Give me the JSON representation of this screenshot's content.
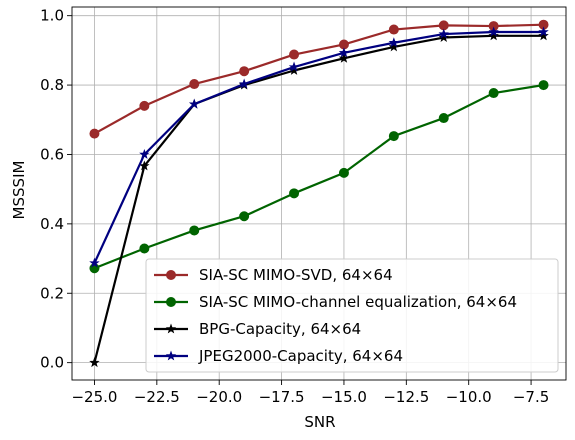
{
  "chart_data": {
    "type": "line",
    "xlabel": "SNR",
    "ylabel": "MSSSIM",
    "xlim": [
      -25.9,
      -6.1
    ],
    "ylim": [
      -0.05,
      1.025
    ],
    "xticks": [
      -25.0,
      -22.5,
      -20.0,
      -17.5,
      -15.0,
      -12.5,
      -10.0,
      -7.5
    ],
    "xtick_labels": [
      "−25.0",
      "−22.5",
      "−20.0",
      "−17.5",
      "−15.0",
      "−12.5",
      "−10.0",
      "−7.5"
    ],
    "yticks": [
      0.0,
      0.2,
      0.4,
      0.6,
      0.8,
      1.0
    ],
    "ytick_labels": [
      "0.0",
      "0.2",
      "0.4",
      "0.6",
      "0.8",
      "1.0"
    ],
    "grid": true,
    "legend_position": "lower-right",
    "x": [
      -25,
      -23,
      -21,
      -19,
      -17,
      -15,
      -13,
      -11,
      -9,
      -7
    ],
    "series": [
      {
        "name": "SIA-SC MIMO-SVD, 64×64",
        "color": "#9b2a2a",
        "marker": "circle",
        "values": [
          0.66,
          0.74,
          0.803,
          0.84,
          0.888,
          0.917,
          0.96,
          0.972,
          0.97,
          0.974
        ]
      },
      {
        "name": "SIA-SC MIMO-channel equalization, 64×64",
        "color": "#006400",
        "marker": "circle",
        "values": [
          0.272,
          0.329,
          0.381,
          0.422,
          0.488,
          0.547,
          0.653,
          0.705,
          0.777,
          0.8
        ]
      },
      {
        "name": "BPG-Capacity, 64×64",
        "color": "#000000",
        "marker": "star",
        "values": [
          0.0,
          0.567,
          0.745,
          0.8,
          0.842,
          0.877,
          0.91,
          0.937,
          0.942,
          0.942
        ]
      },
      {
        "name": "JPEG2000-Capacity, 64×64",
        "color": "#000080",
        "marker": "star",
        "values": [
          0.287,
          0.6,
          0.745,
          0.803,
          0.852,
          0.893,
          0.922,
          0.947,
          0.953,
          0.953
        ]
      }
    ]
  }
}
